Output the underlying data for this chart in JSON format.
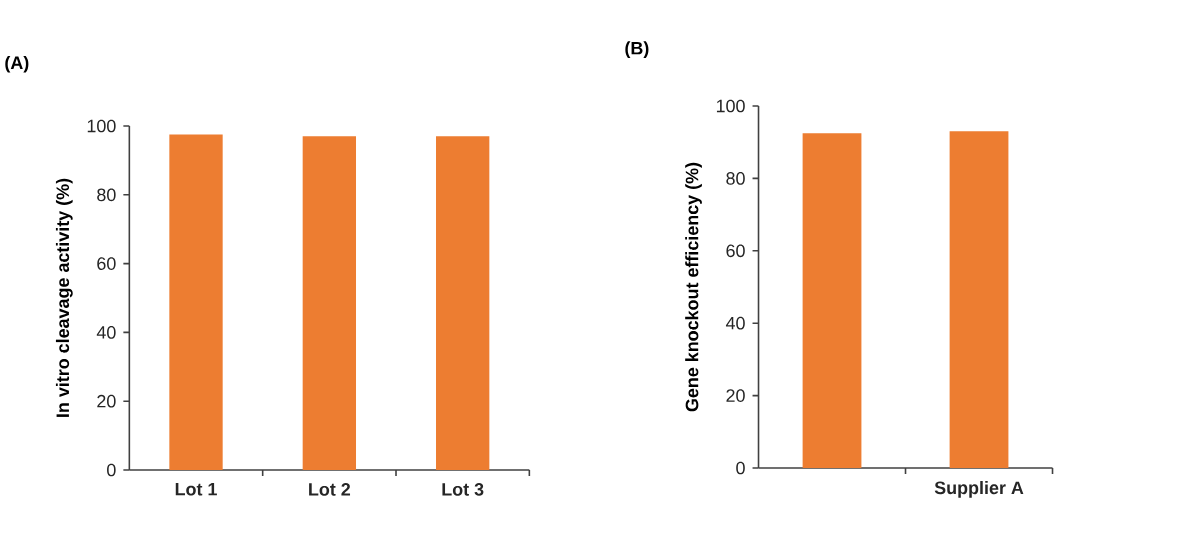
{
  "chart_data": [
    {
      "type": "bar",
      "title": "(A)",
      "ylabel": "In vitro cleavage activity (%)",
      "categories": [
        "Lot 1",
        "Lot 2",
        "Lot 3"
      ],
      "values": [
        97.5,
        97,
        97
      ],
      "color": "#ed7d31",
      "ylim": [
        0,
        100
      ],
      "yticks": [
        0,
        20,
        40,
        60,
        80,
        100
      ]
    },
    {
      "type": "bar",
      "title": "(B)",
      "ylabel": "Gene knockout efficiency (%)",
      "categories": [
        null,
        "Supplier A"
      ],
      "values": [
        92.5,
        93
      ],
      "color": "#ed7d31",
      "ylim": [
        0,
        100
      ],
      "yticks": [
        0,
        20,
        40,
        60,
        80,
        100
      ]
    }
  ]
}
